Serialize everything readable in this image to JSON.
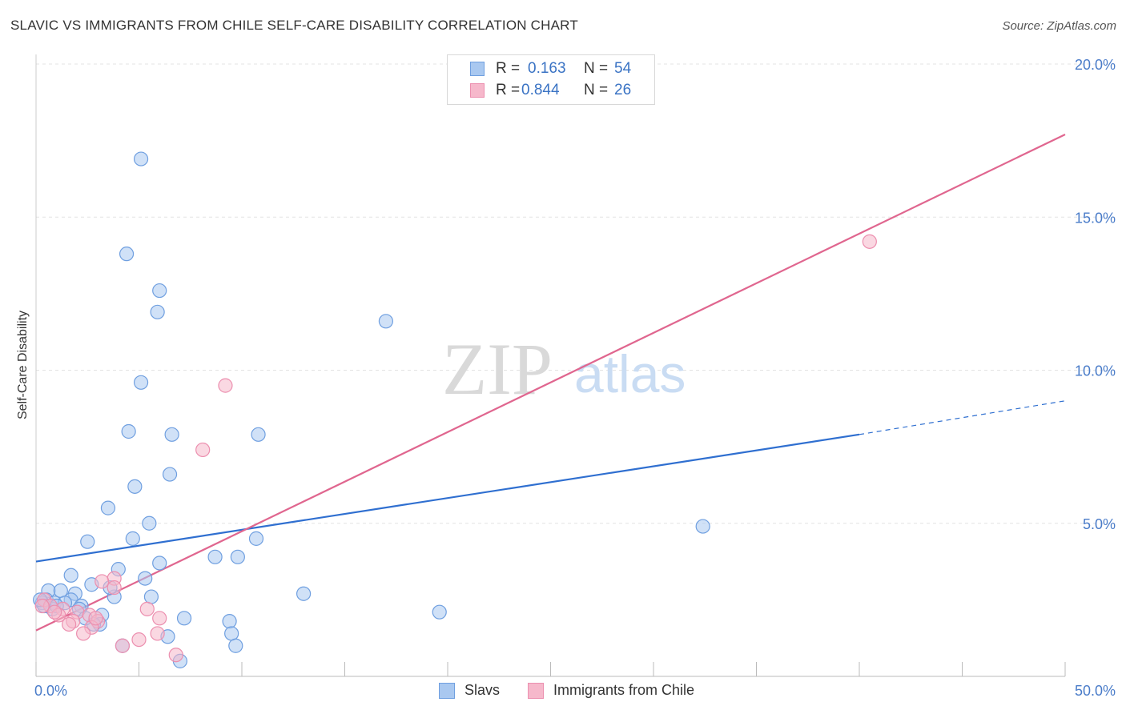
{
  "title": "SLAVIC VS IMMIGRANTS FROM CHILE SELF-CARE DISABILITY CORRELATION CHART",
  "source": "Source: ZipAtlas.com",
  "watermark": {
    "zip": "ZIP",
    "atlas": "atlas"
  },
  "colors": {
    "slavs_fill": "#a9c8f0",
    "slavs_stroke": "#6f9fe0",
    "slavs_line": "#2f6fd0",
    "chile_fill": "#f6b8cb",
    "chile_stroke": "#ec8faf",
    "chile_line": "#e0668f",
    "tick_text": "#4a7cc9",
    "grid": "#e3e3e3"
  },
  "legend": {
    "rows": [
      {
        "r_label": "R =",
        "r_value": "0.163",
        "n_label": "N =",
        "n_value": "54"
      },
      {
        "r_label": "R =",
        "r_value": "0.844",
        "n_label": "N =",
        "n_value": "26"
      }
    ]
  },
  "bottom_legend": {
    "series1": "Slavs",
    "series2": "Immigrants from Chile"
  },
  "chart_data": {
    "type": "scatter",
    "title": "SLAVIC VS IMMIGRANTS FROM CHILE SELF-CARE DISABILITY CORRELATION CHART",
    "xlabel": "",
    "ylabel": "Self-Care Disability",
    "xlim": [
      0,
      50
    ],
    "ylim": [
      0,
      20
    ],
    "x_tick_labels": [
      "0.0%",
      "50.0%"
    ],
    "y_ticks": [
      5,
      10,
      15,
      20
    ],
    "y_tick_labels": [
      "5.0%",
      "10.0%",
      "15.0%",
      "20.0%"
    ],
    "grid": true,
    "series": [
      {
        "name": "Slavs",
        "r": 0.163,
        "n": 54,
        "points": [
          [
            5.1,
            16.9
          ],
          [
            4.4,
            13.8
          ],
          [
            6.0,
            12.6
          ],
          [
            5.9,
            11.9
          ],
          [
            17.0,
            11.6
          ],
          [
            5.1,
            9.6
          ],
          [
            4.5,
            8.0
          ],
          [
            6.6,
            7.9
          ],
          [
            10.8,
            7.9
          ],
          [
            6.5,
            6.6
          ],
          [
            4.8,
            6.2
          ],
          [
            3.5,
            5.5
          ],
          [
            5.5,
            5.0
          ],
          [
            32.4,
            4.9
          ],
          [
            2.5,
            4.4
          ],
          [
            4.7,
            4.5
          ],
          [
            10.7,
            4.5
          ],
          [
            8.7,
            3.9
          ],
          [
            9.8,
            3.9
          ],
          [
            6.0,
            3.7
          ],
          [
            4.0,
            3.5
          ],
          [
            1.7,
            3.3
          ],
          [
            5.3,
            3.2
          ],
          [
            2.7,
            3.0
          ],
          [
            0.6,
            2.8
          ],
          [
            1.2,
            2.8
          ],
          [
            13.0,
            2.7
          ],
          [
            1.9,
            2.7
          ],
          [
            3.8,
            2.6
          ],
          [
            5.6,
            2.6
          ],
          [
            0.5,
            2.5
          ],
          [
            1.7,
            2.5
          ],
          [
            0.9,
            2.4
          ],
          [
            1.4,
            2.4
          ],
          [
            2.2,
            2.3
          ],
          [
            0.3,
            2.4
          ],
          [
            0.8,
            2.2
          ],
          [
            19.6,
            2.1
          ],
          [
            0.4,
            2.3
          ],
          [
            2.1,
            2.2
          ],
          [
            3.2,
            2.0
          ],
          [
            3.1,
            1.7
          ],
          [
            7.2,
            1.9
          ],
          [
            9.4,
            1.8
          ],
          [
            2.8,
            1.7
          ],
          [
            9.5,
            1.4
          ],
          [
            6.4,
            1.3
          ],
          [
            4.2,
            1.0
          ],
          [
            9.7,
            1.0
          ],
          [
            7.0,
            0.5
          ],
          [
            0.2,
            2.5
          ],
          [
            1.0,
            2.3
          ],
          [
            2.4,
            1.9
          ],
          [
            3.6,
            2.9
          ]
        ]
      },
      {
        "name": "Immigrants from Chile",
        "r": 0.844,
        "n": 26,
        "points": [
          [
            40.5,
            14.2
          ],
          [
            9.2,
            9.5
          ],
          [
            8.1,
            7.4
          ],
          [
            3.8,
            3.2
          ],
          [
            3.2,
            3.1
          ],
          [
            3.8,
            2.9
          ],
          [
            5.4,
            2.2
          ],
          [
            0.4,
            2.5
          ],
          [
            1.3,
            2.2
          ],
          [
            2.0,
            2.1
          ],
          [
            0.7,
            2.3
          ],
          [
            1.1,
            2.0
          ],
          [
            2.6,
            2.0
          ],
          [
            6.0,
            1.9
          ],
          [
            1.8,
            1.8
          ],
          [
            3.0,
            1.8
          ],
          [
            2.7,
            1.6
          ],
          [
            1.6,
            1.7
          ],
          [
            0.3,
            2.3
          ],
          [
            2.3,
            1.4
          ],
          [
            5.9,
            1.4
          ],
          [
            5.0,
            1.2
          ],
          [
            4.2,
            1.0
          ],
          [
            6.8,
            0.7
          ],
          [
            0.9,
            2.1
          ],
          [
            2.9,
            1.9
          ]
        ]
      }
    ],
    "trendlines": [
      {
        "series": "Slavs",
        "x0": 0,
        "y0": 3.75,
        "x1": 40,
        "y1": 7.9,
        "dashed_to_x": 50,
        "dashed_to_y": 9.0
      },
      {
        "series": "Immigrants from Chile",
        "x0": 0,
        "y0": 1.5,
        "x1": 50,
        "y1": 17.7
      }
    ]
  }
}
